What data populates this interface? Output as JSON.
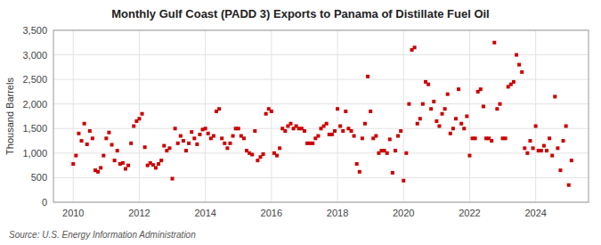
{
  "chart_data": {
    "type": "scatter",
    "title": "Monthly Gulf Coast (PADD 3) Exports to Panama of Distillate Fuel Oil",
    "ylabel": "Thousand Barrels",
    "source": "Source: U.S. Energy Information Administration",
    "color": "#cc0000",
    "marker": "square",
    "grid": true,
    "xlim": [
      2009.4,
      2025.6
    ],
    "xticks": [
      2010,
      2012,
      2014,
      2016,
      2018,
      2020,
      2022,
      2024
    ],
    "ylim": [
      0,
      3500
    ],
    "yticks": [
      0,
      500,
      {
        "value": 1000,
        "label": "1,000"
      },
      {
        "value": 1500,
        "label": "1,500"
      },
      {
        "value": 2000,
        "label": "2,000"
      },
      {
        "value": 2500,
        "label": "2,500"
      },
      {
        "value": 3000,
        "label": "3,000"
      },
      {
        "value": 3500,
        "label": "3,500"
      }
    ],
    "x": [
      2010.0,
      2010.083,
      2010.167,
      2010.25,
      2010.333,
      2010.417,
      2010.5,
      2010.583,
      2010.667,
      2010.75,
      2010.833,
      2010.917,
      2011.0,
      2011.083,
      2011.167,
      2011.25,
      2011.333,
      2011.417,
      2011.5,
      2011.583,
      2011.667,
      2011.75,
      2011.833,
      2011.917,
      2012.0,
      2012.083,
      2012.167,
      2012.25,
      2012.333,
      2012.417,
      2012.5,
      2012.583,
      2012.667,
      2012.75,
      2012.833,
      2012.917,
      2013.0,
      2013.083,
      2013.167,
      2013.25,
      2013.333,
      2013.417,
      2013.5,
      2013.583,
      2013.667,
      2013.75,
      2013.833,
      2013.917,
      2014.0,
      2014.083,
      2014.167,
      2014.25,
      2014.333,
      2014.417,
      2014.5,
      2014.583,
      2014.667,
      2014.75,
      2014.833,
      2014.917,
      2015.0,
      2015.083,
      2015.167,
      2015.25,
      2015.333,
      2015.417,
      2015.5,
      2015.583,
      2015.667,
      2015.75,
      2015.833,
      2015.917,
      2016.0,
      2016.083,
      2016.167,
      2016.25,
      2016.333,
      2016.417,
      2016.5,
      2016.583,
      2016.667,
      2016.75,
      2016.833,
      2016.917,
      2017.0,
      2017.083,
      2017.167,
      2017.25,
      2017.333,
      2017.417,
      2017.5,
      2017.583,
      2017.667,
      2017.75,
      2017.833,
      2017.917,
      2018.0,
      2018.083,
      2018.167,
      2018.25,
      2018.333,
      2018.417,
      2018.5,
      2018.583,
      2018.667,
      2018.75,
      2018.833,
      2018.917,
      2019.0,
      2019.083,
      2019.167,
      2019.25,
      2019.333,
      2019.417,
      2019.5,
      2019.583,
      2019.667,
      2019.75,
      2019.833,
      2019.917,
      2020.0,
      2020.083,
      2020.167,
      2020.25,
      2020.333,
      2020.417,
      2020.5,
      2020.583,
      2020.667,
      2020.75,
      2020.833,
      2020.917,
      2021.0,
      2021.083,
      2021.167,
      2021.25,
      2021.333,
      2021.417,
      2021.5,
      2021.583,
      2021.667,
      2021.75,
      2021.833,
      2021.917,
      2022.0,
      2022.083,
      2022.167,
      2022.25,
      2022.333,
      2022.417,
      2022.5,
      2022.583,
      2022.667,
      2022.75,
      2022.833,
      2022.917,
      2023.0,
      2023.083,
      2023.167,
      2023.25,
      2023.333,
      2023.417,
      2023.5,
      2023.583,
      2023.667,
      2023.75,
      2023.833,
      2023.917,
      2024.0,
      2024.083,
      2024.167,
      2024.25,
      2024.333,
      2024.417,
      2024.5,
      2024.583,
      2024.667,
      2024.75,
      2024.833,
      2024.917,
      2025.0,
      2025.083
    ],
    "values": [
      780,
      950,
      1400,
      1250,
      1600,
      1180,
      1450,
      1300,
      650,
      620,
      700,
      950,
      1300,
      1420,
      1170,
      850,
      1050,
      780,
      800,
      680,
      750,
      1200,
      1550,
      1650,
      1700,
      1800,
      1120,
      750,
      800,
      760,
      700,
      780,
      850,
      1150,
      1050,
      1100,
      480,
      1500,
      1200,
      1350,
      1250,
      1050,
      1200,
      1430,
      1300,
      1180,
      1380,
      1480,
      1500,
      1400,
      1300,
      1350,
      1850,
      1900,
      1300,
      1200,
      1100,
      1200,
      1350,
      1500,
      1500,
      1350,
      1300,
      1050,
      1000,
      970,
      1450,
      850,
      920,
      980,
      1800,
      1900,
      1850,
      1000,
      950,
      1100,
      1500,
      1450,
      1550,
      1600,
      1500,
      1550,
      1500,
      1500,
      1450,
      1200,
      1200,
      1200,
      1300,
      1350,
      1500,
      1550,
      1600,
      1380,
      1380,
      1450,
      1900,
      1550,
      1450,
      1850,
      1500,
      1450,
      1350,
      780,
      620,
      1300,
      1600,
      2560,
      1850,
      1300,
      1350,
      1000,
      1050,
      1050,
      1000,
      1280,
      600,
      1050,
      1350,
      1450,
      440,
      1000,
      2000,
      3100,
      3150,
      1600,
      1700,
      2000,
      2450,
      2400,
      1900,
      2050,
      1650,
      1550,
      1800,
      1900,
      2200,
      1400,
      1500,
      1700,
      2300,
      1600,
      1500,
      1750,
      950,
      1300,
      1300,
      2250,
      2300,
      1950,
      1300,
      1300,
      1250,
      3250,
      1900,
      2000,
      1300,
      1300,
      2350,
      2400,
      2450,
      3000,
      2800,
      2650,
      1100,
      1000,
      1250,
      1100,
      1550,
      1050,
      1050,
      1150,
      1050,
      1300,
      950,
      2150,
      1100,
      650,
      1250,
      1550,
      350,
      850
    ]
  }
}
